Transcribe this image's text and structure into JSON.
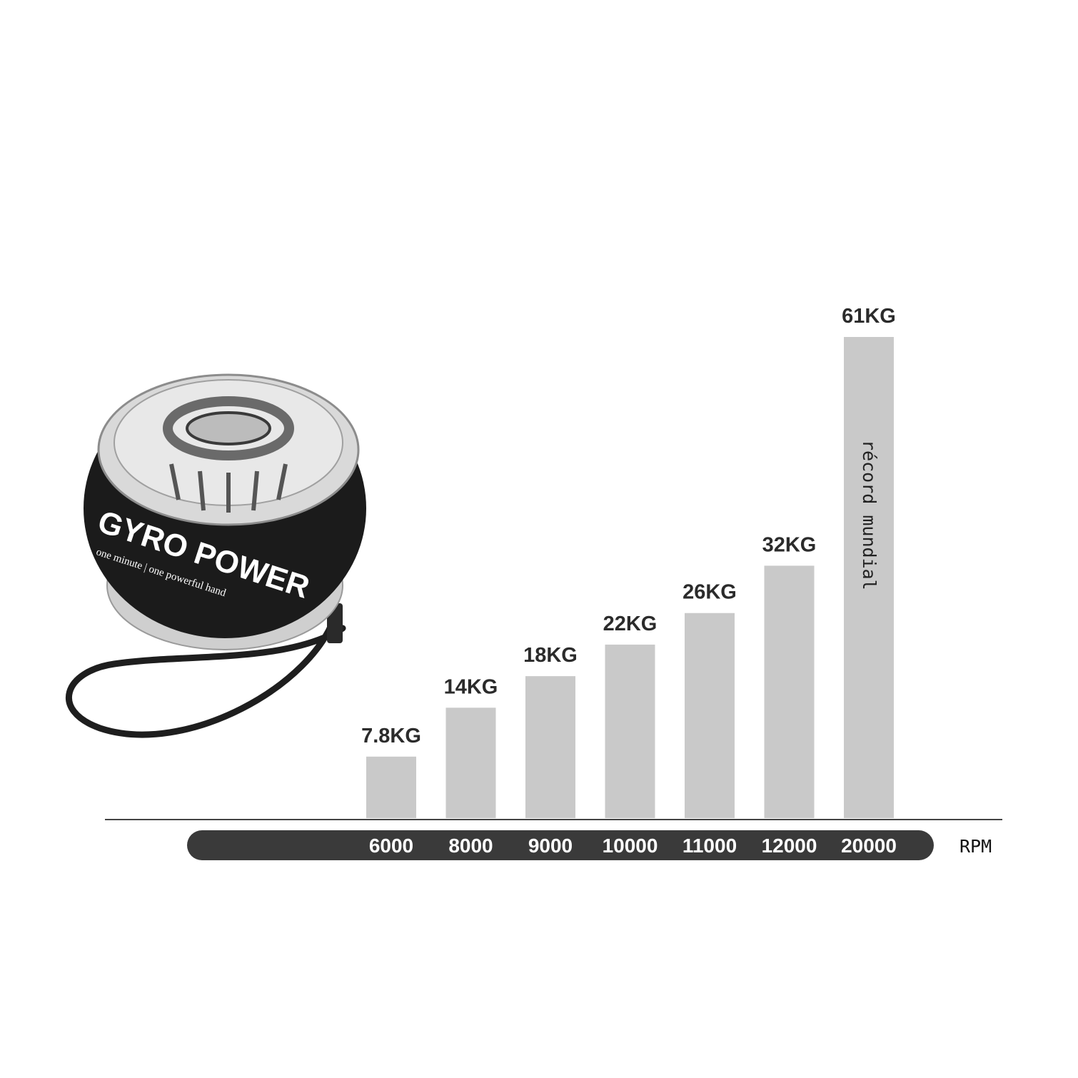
{
  "chart_data": {
    "type": "bar",
    "categories": [
      "6000",
      "8000",
      "9000",
      "10000",
      "11000",
      "12000",
      "20000"
    ],
    "values": [
      7.8,
      14,
      18,
      22,
      26,
      32,
      61
    ],
    "data_labels": [
      "7.8KG",
      "14KG",
      "18KG",
      "22KG",
      "26KG",
      "32KG",
      "61KG"
    ],
    "x_unit": "RPM",
    "annotation": "récord mundial",
    "annotation_category": "20000",
    "bar_color": "#c9c9c9",
    "axis_band_color": "#3a3a3a"
  },
  "product": {
    "brand": "GYRO POWER",
    "tagline": "one minute | one powerful hand",
    "icon": "gyro-ball-icon"
  }
}
